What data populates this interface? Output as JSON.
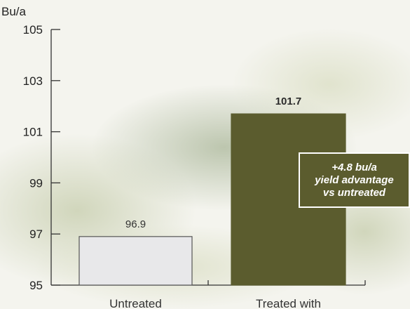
{
  "chart_data": {
    "type": "bar",
    "title": "",
    "ylabel": "Bu/a",
    "xlabel": "",
    "ylim": [
      95,
      105
    ],
    "yticks": [
      95,
      97,
      99,
      101,
      103,
      105
    ],
    "grid": false,
    "categories": [
      "Untreated",
      "Treated with"
    ],
    "values": [
      96.9,
      101.7
    ],
    "value_labels": [
      "96.9",
      "101.7"
    ],
    "bar_colors": [
      "#e8e8ea",
      "#5b5c2e"
    ],
    "bar_edge_colors": [
      "#555555",
      "#5b5c2e"
    ]
  },
  "callout": {
    "lines": [
      "+4.8 bu/a",
      "yield advantage",
      "vs untreated"
    ],
    "background": "#5b5c2e",
    "text_color": "#ffffff"
  }
}
